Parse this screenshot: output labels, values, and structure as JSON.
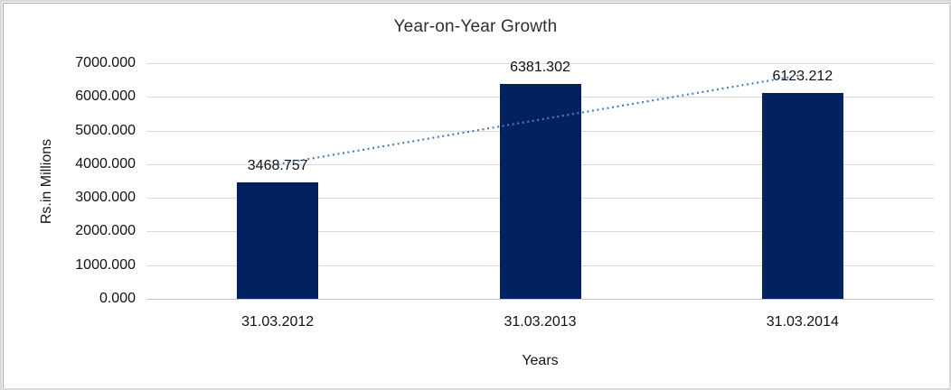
{
  "chart_data": {
    "type": "bar",
    "title": "Year-on-Year Growth",
    "categories": [
      "31.03.2012",
      "31.03.2013",
      "31.03.2014"
    ],
    "values": [
      3468.757,
      6381.302,
      6123.212
    ],
    "data_labels": [
      "3468.757",
      "6381.302",
      "6123.212"
    ],
    "xlabel": "Years",
    "ylabel": "Rs.in Millions",
    "ylim": [
      0,
      7000
    ],
    "ytick_interval": 1000,
    "ytick_labels": [
      "0.000",
      "1000.000",
      "2000.000",
      "3000.000",
      "4000.000",
      "5000.000",
      "6000.000",
      "7000.000"
    ],
    "grid": true,
    "legend": "none",
    "bar_color": "#02215e",
    "gridline_color": "#d9d9d9",
    "axis_text_color": "#111111",
    "trendline": {
      "type": "linear",
      "style": "dotted",
      "color": "#4a7ebb",
      "start_value": 3997.2,
      "end_value": 6651.6
    }
  }
}
